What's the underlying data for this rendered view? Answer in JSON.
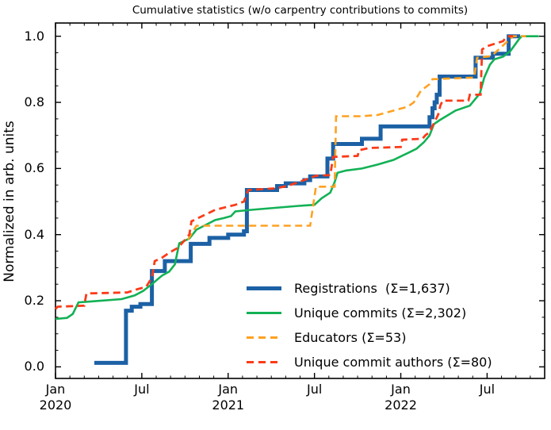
{
  "chart_data": {
    "type": "line",
    "title": "Cumulative statistics (w/o carpentry contributions to commits)",
    "ylabel": "Normalized in arb. units",
    "xlabel": "",
    "x_unit": "months since 2020-01-01",
    "xlim": [
      0,
      34
    ],
    "ylim": [
      -0.035,
      1.04
    ],
    "grid": false,
    "legend_position": "lower-right-inside",
    "y_ticks": [
      {
        "v": 0.0,
        "label": "0.0"
      },
      {
        "v": 0.2,
        "label": "0.2"
      },
      {
        "v": 0.4,
        "label": "0.4"
      },
      {
        "v": 0.6,
        "label": "0.6"
      },
      {
        "v": 0.8,
        "label": "0.8"
      },
      {
        "v": 1.0,
        "label": "1.0"
      }
    ],
    "x_major_ticks": [
      {
        "m": 0,
        "label": "Jan",
        "year": "2020"
      },
      {
        "m": 6,
        "label": "Jul",
        "year": ""
      },
      {
        "m": 12,
        "label": "Jan",
        "year": "2021"
      },
      {
        "m": 18,
        "label": "Jul",
        "year": ""
      },
      {
        "m": 24,
        "label": "Jan",
        "year": "2022"
      },
      {
        "m": 30,
        "label": "Jul",
        "year": ""
      }
    ],
    "series": [
      {
        "name": "Registrations",
        "legend": "Registrations  (Σ=1,637)",
        "total": "1,637",
        "color": "#1c61a5",
        "style": "solid",
        "width": 5,
        "step": true,
        "points": [
          [
            2.7,
            0.012
          ],
          [
            4.9,
            0.17
          ],
          [
            5.3,
            0.182
          ],
          [
            5.9,
            0.19
          ],
          [
            6.7,
            0.29
          ],
          [
            7.6,
            0.32
          ],
          [
            9.4,
            0.372
          ],
          [
            10.7,
            0.39
          ],
          [
            12.0,
            0.4
          ],
          [
            13.1,
            0.41
          ],
          [
            13.3,
            0.535
          ],
          [
            15.4,
            0.547
          ],
          [
            16.0,
            0.555
          ],
          [
            17.3,
            0.565
          ],
          [
            17.7,
            0.576
          ],
          [
            18.9,
            0.63
          ],
          [
            19.3,
            0.674
          ],
          [
            21.3,
            0.69
          ],
          [
            22.6,
            0.727
          ],
          [
            26.0,
            0.755
          ],
          [
            26.2,
            0.782
          ],
          [
            26.35,
            0.8
          ],
          [
            26.5,
            0.823
          ],
          [
            26.7,
            0.878
          ],
          [
            29.2,
            0.935
          ],
          [
            30.4,
            0.947
          ],
          [
            31.5,
            1.0
          ],
          [
            32.3,
            1.0
          ]
        ]
      },
      {
        "name": "Unique commits",
        "legend": "Unique commits (Σ=2,302)",
        "total": "2,302",
        "color": "#12b155",
        "style": "solid",
        "width": 2.6,
        "step": false,
        "points": [
          [
            0,
            0.145
          ],
          [
            0.8,
            0.148
          ],
          [
            1.2,
            0.16
          ],
          [
            1.6,
            0.195
          ],
          [
            2.5,
            0.198
          ],
          [
            4.6,
            0.205
          ],
          [
            5.5,
            0.216
          ],
          [
            6.1,
            0.23
          ],
          [
            6.8,
            0.254
          ],
          [
            7.4,
            0.276
          ],
          [
            7.9,
            0.288
          ],
          [
            8.3,
            0.31
          ],
          [
            8.6,
            0.374
          ],
          [
            9.3,
            0.388
          ],
          [
            9.8,
            0.415
          ],
          [
            11.1,
            0.444
          ],
          [
            11.7,
            0.45
          ],
          [
            12.2,
            0.456
          ],
          [
            12.5,
            0.47
          ],
          [
            13.6,
            0.475
          ],
          [
            16.9,
            0.487
          ],
          [
            18.0,
            0.49
          ],
          [
            18.5,
            0.51
          ],
          [
            19.1,
            0.527
          ],
          [
            19.4,
            0.559
          ],
          [
            19.6,
            0.587
          ],
          [
            20.2,
            0.594
          ],
          [
            21.3,
            0.6
          ],
          [
            22.4,
            0.612
          ],
          [
            23.5,
            0.626
          ],
          [
            24.5,
            0.647
          ],
          [
            25.1,
            0.66
          ],
          [
            25.6,
            0.679
          ],
          [
            26.0,
            0.7
          ],
          [
            26.3,
            0.734
          ],
          [
            26.7,
            0.746
          ],
          [
            27.8,
            0.775
          ],
          [
            28.8,
            0.79
          ],
          [
            29.5,
            0.827
          ],
          [
            29.8,
            0.875
          ],
          [
            30.2,
            0.914
          ],
          [
            30.5,
            0.93
          ],
          [
            31.1,
            0.938
          ],
          [
            31.6,
            0.954
          ],
          [
            32.2,
            0.99
          ],
          [
            32.4,
            1.0
          ],
          [
            33.6,
            1.0
          ]
        ]
      },
      {
        "name": "Educators",
        "legend": "Educators (Σ=53)",
        "total": "53",
        "color": "#ffa120",
        "style": "dashed",
        "width": 2.6,
        "step": false,
        "points": [
          [
            9.2,
            0.385
          ],
          [
            9.8,
            0.427
          ],
          [
            17.7,
            0.427
          ],
          [
            18.1,
            0.545
          ],
          [
            19.4,
            0.545
          ],
          [
            19.5,
            0.758
          ],
          [
            21.3,
            0.758
          ],
          [
            22.4,
            0.762
          ],
          [
            23.5,
            0.775
          ],
          [
            24.5,
            0.787
          ],
          [
            24.9,
            0.8
          ],
          [
            25.4,
            0.835
          ],
          [
            26.0,
            0.855
          ],
          [
            26.2,
            0.87
          ],
          [
            29.1,
            0.875
          ],
          [
            29.3,
            0.935
          ],
          [
            30.3,
            0.94
          ],
          [
            31.8,
            1.0
          ],
          [
            32.7,
            1.0
          ]
        ]
      },
      {
        "name": "Unique commit authors",
        "legend": "Unique commit authors (Σ=80)",
        "total": "80",
        "color": "#fb3b18",
        "style": "dashed",
        "width": 2.8,
        "step": false,
        "points": [
          [
            0,
            0.175
          ],
          [
            0.15,
            0.182
          ],
          [
            2.0,
            0.185
          ],
          [
            2.15,
            0.222
          ],
          [
            5.0,
            0.225
          ],
          [
            5.7,
            0.235
          ],
          [
            6.3,
            0.242
          ],
          [
            6.7,
            0.27
          ],
          [
            6.9,
            0.32
          ],
          [
            7.4,
            0.33
          ],
          [
            7.9,
            0.345
          ],
          [
            8.5,
            0.36
          ],
          [
            8.9,
            0.379
          ],
          [
            9.3,
            0.4
          ],
          [
            9.45,
            0.44
          ],
          [
            10.2,
            0.456
          ],
          [
            11.1,
            0.475
          ],
          [
            12.2,
            0.487
          ],
          [
            12.5,
            0.49
          ],
          [
            13.1,
            0.5
          ],
          [
            13.4,
            0.535
          ],
          [
            15.3,
            0.54
          ],
          [
            16.1,
            0.547
          ],
          [
            16.9,
            0.559
          ],
          [
            18.1,
            0.578
          ],
          [
            19.1,
            0.58
          ],
          [
            19.3,
            0.635
          ],
          [
            21.0,
            0.638
          ],
          [
            21.1,
            0.655
          ],
          [
            21.8,
            0.662
          ],
          [
            24.0,
            0.665
          ],
          [
            24.1,
            0.687
          ],
          [
            25.5,
            0.69
          ],
          [
            25.7,
            0.7
          ],
          [
            26.0,
            0.71
          ],
          [
            26.6,
            0.763
          ],
          [
            26.75,
            0.79
          ],
          [
            26.9,
            0.805
          ],
          [
            28.7,
            0.805
          ],
          [
            28.8,
            0.823
          ],
          [
            29.55,
            0.823
          ],
          [
            29.65,
            0.96
          ],
          [
            30.0,
            0.97
          ],
          [
            31.1,
            0.985
          ],
          [
            31.4,
            1.0
          ],
          [
            31.8,
            1.0
          ]
        ]
      }
    ]
  }
}
